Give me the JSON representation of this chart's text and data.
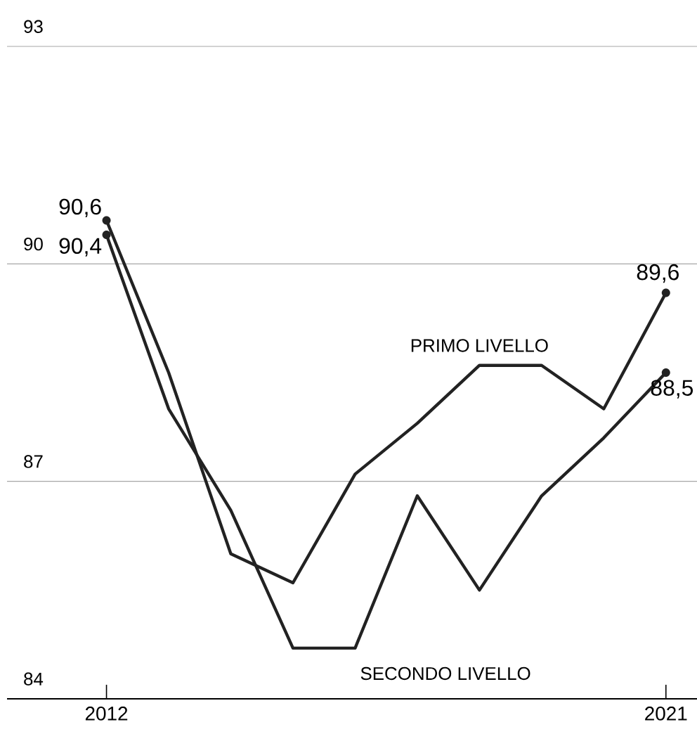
{
  "chart_data": {
    "type": "line",
    "x": [
      2012,
      2013,
      2014,
      2015,
      2016,
      2017,
      2018,
      2019,
      2020,
      2021
    ],
    "series": [
      {
        "name": "PRIMO LIVELLO",
        "color": "#222222",
        "values": [
          90.6,
          88.5,
          86.0,
          85.6,
          87.1,
          87.8,
          88.6,
          88.6,
          88.0,
          89.6
        ],
        "value_labels": [
          "90,6",
          null,
          null,
          null,
          null,
          null,
          null,
          null,
          null,
          "89,6"
        ]
      },
      {
        "name": "SECONDO LIVELLO",
        "color": "#222222",
        "values": [
          90.4,
          88.0,
          86.6,
          84.7,
          84.7,
          86.8,
          85.5,
          86.8,
          87.6,
          88.5
        ],
        "value_labels": [
          "90,4",
          null,
          null,
          null,
          null,
          null,
          null,
          null,
          null,
          "88,5"
        ]
      }
    ],
    "xlim": [
      2010.4,
      2021.5
    ],
    "xticks": [
      2012,
      2021
    ],
    "ylim": [
      84,
      93
    ],
    "yticks": [
      84,
      87,
      90,
      93
    ],
    "grid": "y",
    "line_style": "solid",
    "legend": false
  }
}
